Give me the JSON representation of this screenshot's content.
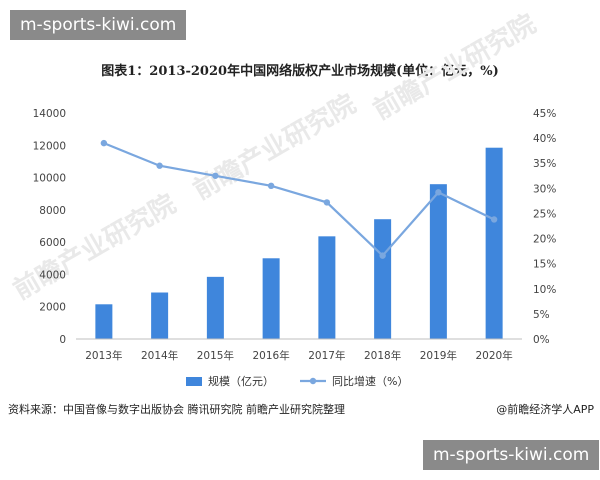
{
  "banner_top": "m-sports-kiwi.com",
  "banner_bottom": "m-sports-kiwi.com",
  "footer": {
    "source": "资料来源：中国音像与数字出版协会 腾讯研究院 前瞻产业研究院整理",
    "credit": "@前瞻经济学人APP"
  },
  "watermark": "前瞻产业研究院",
  "colors": {
    "bar": "#3f86dc",
    "line": "#7aa7df"
  },
  "chart_data": {
    "type": "bar",
    "title": "图表1：2013-2020年中国网络版权产业市场规模(单位：亿元，%)",
    "categories": [
      "2013年",
      "2014年",
      "2015年",
      "2016年",
      "2017年",
      "2018年",
      "2019年",
      "2020年"
    ],
    "series": [
      {
        "name": "规模（亿元）",
        "type": "bar",
        "axis": "left",
        "values": [
          2150,
          2880,
          3850,
          5000,
          6360,
          7420,
          9590,
          11850
        ]
      },
      {
        "name": "同比增速（%）",
        "type": "line",
        "axis": "right",
        "values": [
          39.0,
          34.5,
          32.5,
          30.5,
          27.2,
          16.6,
          29.2,
          23.8
        ]
      }
    ],
    "y_left": {
      "min": 0,
      "max": 14000,
      "step": 2000,
      "ticks": [
        "0",
        "2000",
        "4000",
        "6000",
        "8000",
        "10000",
        "12000",
        "14000"
      ]
    },
    "y_right": {
      "min": 0,
      "max": 45,
      "step": 5,
      "ticks": [
        "0%",
        "5%",
        "10%",
        "15%",
        "20%",
        "25%",
        "30%",
        "35%",
        "40%",
        "45%"
      ]
    },
    "legend_position": "bottom",
    "grid": false
  }
}
